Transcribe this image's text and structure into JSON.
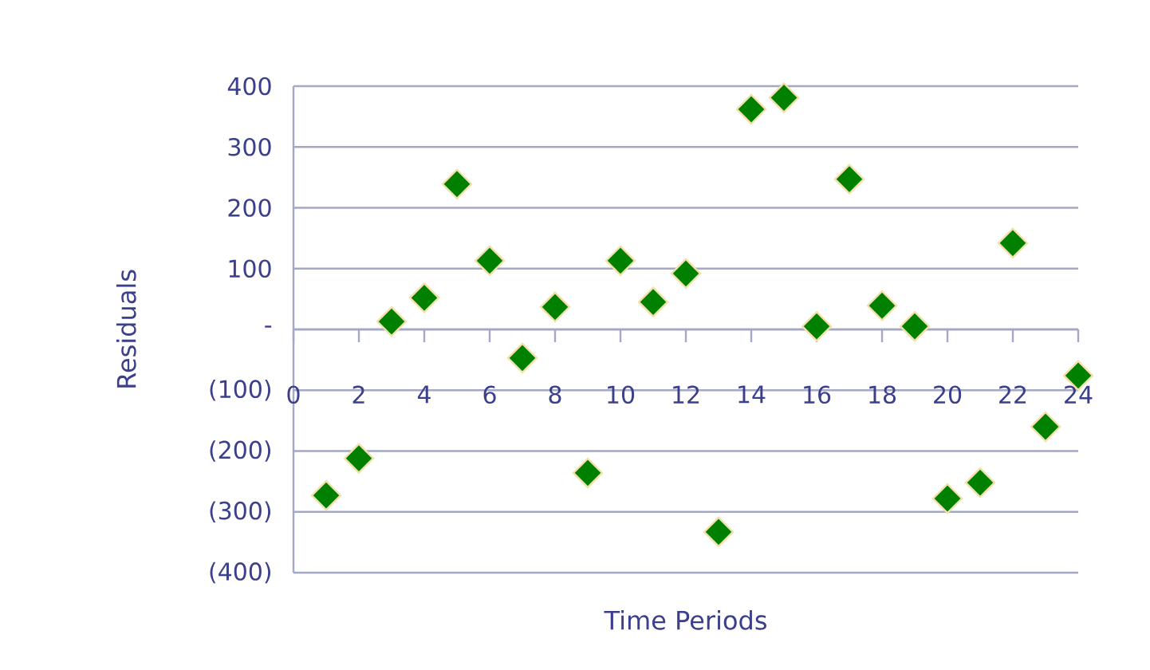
{
  "chart_data": {
    "type": "scatter",
    "xlabel": "Time Periods",
    "ylabel": "Residuals",
    "x": [
      1,
      2,
      3,
      4,
      5,
      6,
      7,
      8,
      9,
      10,
      11,
      12,
      13,
      14,
      15,
      16,
      17,
      18,
      19,
      20,
      21,
      22,
      23,
      24
    ],
    "values": [
      -273,
      -212,
      13,
      52,
      239,
      113,
      -47,
      37,
      -236,
      113,
      45,
      92,
      -333,
      362,
      381,
      5,
      247,
      39,
      5,
      -278,
      -252,
      142,
      -160,
      -76
    ],
    "color": "#008000",
    "marker": "diamond",
    "xlim": [
      0,
      24
    ],
    "xticks": [
      0,
      2,
      4,
      6,
      8,
      10,
      12,
      14,
      16,
      18,
      20,
      22,
      24
    ],
    "ylim": [
      -400,
      400
    ],
    "yticks": [
      {
        "value": -400,
        "label": "(400)"
      },
      {
        "value": -300,
        "label": "(300)"
      },
      {
        "value": -200,
        "label": "(200)"
      },
      {
        "value": -100,
        "label": "(100)"
      },
      {
        "value": 0,
        "label": "-"
      },
      100,
      200,
      300,
      400
    ],
    "grid": "y"
  }
}
